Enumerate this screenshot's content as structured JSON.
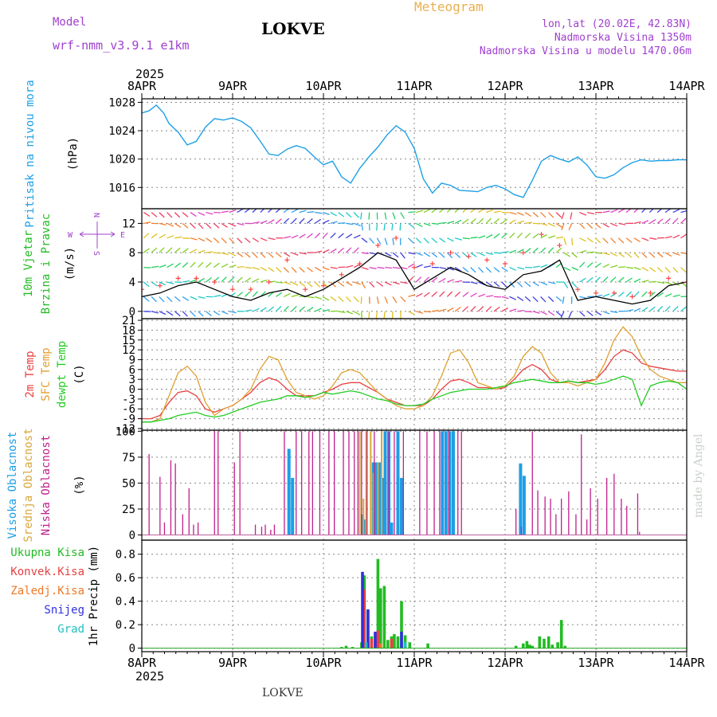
{
  "header": {
    "model_label": "Model",
    "model_name": "wrf-nmm_v3.9.1  e1km",
    "station": "LOKVE",
    "title": "Meteogram",
    "coords": "lon,lat (20.02E, 42.83N)",
    "elevation": "Nadmorska Visina 1350m",
    "model_elevation": "Nadmorska Visina u modelu 1470.06m",
    "footer_station": "LOKVE",
    "watermark": "made by Angel"
  },
  "colors": {
    "pressure": "#1ea0e6",
    "wind_label": "#22bb22",
    "wind_obs_black": "#000000",
    "gust": "#ff4444",
    "temp2m": "#e84040",
    "sfc": "#e0a030",
    "dewpt": "#22cc22",
    "cloud_high": "#1e9ee6",
    "cloud_mid": "#d8a83c",
    "cloud_low": "#c0208c",
    "precip_total": "#22bb22",
    "precip_conv": "#e84040",
    "precip_frz": "#ee7722",
    "precip_snow": "#3030e0",
    "precip_hail": "#20c0c0",
    "purple": "#a040d0",
    "gold": "#e8b050"
  },
  "chart_data": [
    {
      "type": "line",
      "panel": "pressure",
      "ylabel_1": "Pritisak na nivou mora",
      "ylabel_2": "(hPa)",
      "ylim": [
        1013,
        1028.5
      ],
      "yticks": [
        1016,
        1020,
        1024,
        1028
      ],
      "x_days": [
        0,
        0.08,
        0.16,
        0.24,
        0.3,
        0.4,
        0.5,
        0.6,
        0.7,
        0.8,
        0.9,
        1.0,
        1.1,
        1.2,
        1.3,
        1.4,
        1.5,
        1.6,
        1.7,
        1.8,
        1.9,
        2.0,
        2.1,
        2.2,
        2.3,
        2.4,
        2.5,
        2.6,
        2.7,
        2.8,
        2.9,
        3.0,
        3.1,
        3.2,
        3.3,
        3.4,
        3.5,
        3.6,
        3.7,
        3.8,
        3.9,
        4.0,
        4.1,
        4.2,
        4.3,
        4.4,
        4.5,
        4.6,
        4.7,
        4.8,
        4.9,
        5.0,
        5.1,
        5.2,
        5.3,
        5.4,
        5.5,
        5.6,
        5.7,
        5.8,
        5.9,
        6.0
      ],
      "values": [
        1026.5,
        1026.8,
        1027.6,
        1026.5,
        1025,
        1023.8,
        1022,
        1022.5,
        1024.5,
        1025.7,
        1025.5,
        1025.8,
        1025.3,
        1024.4,
        1022.6,
        1020.7,
        1020.5,
        1021.4,
        1021.9,
        1021.5,
        1020.3,
        1019.2,
        1019.7,
        1017.5,
        1016.6,
        1018.7,
        1020.3,
        1021.7,
        1023.4,
        1024.7,
        1023.8,
        1021.5,
        1017.2,
        1015.2,
        1016.6,
        1016.3,
        1015.6,
        1015.5,
        1015.4,
        1016,
        1016.3,
        1015.8,
        1015.0,
        1014.6,
        1017,
        1019.7,
        1020.5,
        1020.0,
        1019.6,
        1020.3,
        1019.2,
        1017.5,
        1017.3,
        1017.8,
        1018.8,
        1019.5,
        1019.9,
        1019.7,
        1019.8,
        1019.8,
        1019.9,
        1019.9
      ]
    },
    {
      "type": "line",
      "panel": "wind",
      "ylabel_1": "10m Vjetar",
      "ylabel_2": "Brzina i Pravac",
      "ylabel_3": "(m/s)",
      "ylim": [
        -1,
        14
      ],
      "yticks": [
        0,
        4,
        8,
        12
      ],
      "compass": {
        "n": "N",
        "s": "S",
        "w": "W",
        "e": "E"
      },
      "x_days": [
        0,
        0.2,
        0.4,
        0.6,
        0.8,
        1.0,
        1.2,
        1.4,
        1.6,
        1.8,
        2.0,
        2.2,
        2.4,
        2.6,
        2.8,
        3.0,
        3.2,
        3.4,
        3.6,
        3.8,
        4.0,
        4.2,
        4.4,
        4.6,
        4.8,
        5.0,
        5.2,
        5.4,
        5.6,
        5.8,
        6.0
      ],
      "series": [
        {
          "name": "wind speed",
          "values": [
            2,
            2.5,
            3.5,
            4.0,
            3.0,
            2.0,
            1.5,
            2.5,
            3.0,
            2.0,
            3.0,
            4.5,
            6.0,
            8.0,
            7.0,
            3.0,
            4.5,
            6.0,
            5.0,
            3.5,
            3.0,
            5.0,
            5.5,
            7.0,
            1.5,
            2.0,
            1.5,
            1.0,
            1.5,
            3.5,
            4.0
          ]
        },
        {
          "name": "gust",
          "values": [
            3,
            3.5,
            4.5,
            4.5,
            4.0,
            3.0,
            3.0,
            4.0,
            7.0,
            3.0,
            3.5,
            5.0,
            6.5,
            9.0,
            10.0,
            6.0,
            6.5,
            8.0,
            7.5,
            7.0,
            6.5,
            8.0,
            10.5,
            9.0,
            3.0,
            2.5,
            2.5,
            2.0,
            2.5,
            4.5,
            4.0
          ]
        }
      ]
    },
    {
      "type": "line",
      "panel": "temperature",
      "ylabel_1": "2m Temp",
      "ylabel_2": "SFC Temp",
      "ylabel_3": "dewpt Temp",
      "ylabel_4": "(C)",
      "ylim": [
        -12.5,
        21.5
      ],
      "yticks": [
        -12,
        -9,
        -6,
        -3,
        0,
        3,
        6,
        9,
        12,
        15,
        18,
        21
      ],
      "x_days": [
        0,
        0.1,
        0.2,
        0.3,
        0.4,
        0.5,
        0.6,
        0.7,
        0.8,
        0.9,
        1.0,
        1.1,
        1.2,
        1.3,
        1.4,
        1.5,
        1.6,
        1.7,
        1.8,
        1.9,
        2.0,
        2.1,
        2.2,
        2.3,
        2.4,
        2.5,
        2.6,
        2.7,
        2.8,
        2.9,
        3.0,
        3.1,
        3.2,
        3.3,
        3.4,
        3.5,
        3.6,
        3.7,
        3.8,
        3.9,
        4.0,
        4.1,
        4.2,
        4.3,
        4.4,
        4.5,
        4.6,
        4.7,
        4.8,
        4.9,
        5.0,
        5.1,
        5.2,
        5.3,
        5.4,
        5.5,
        5.6,
        5.7,
        5.8,
        5.9,
        6.0
      ],
      "series": [
        {
          "name": "2m Temp",
          "values": [
            -9,
            -9,
            -8,
            -4,
            -1,
            -0.5,
            -2,
            -6,
            -7,
            -6,
            -5,
            -3,
            -1,
            2,
            3.5,
            2.5,
            0,
            -2,
            -2,
            -2,
            -1,
            0,
            1.5,
            2,
            2,
            0.5,
            -1,
            -3,
            -4,
            -5,
            -5,
            -5,
            -3,
            0,
            2.5,
            3,
            2,
            0.5,
            0.5,
            0,
            0.5,
            3,
            6,
            7.5,
            6,
            3,
            2,
            2.5,
            2,
            2.5,
            3,
            6,
            10,
            12,
            11,
            8,
            7,
            6.5,
            6,
            5.5,
            5.5
          ]
        },
        {
          "name": "SFC Temp",
          "values": [
            -10,
            -10,
            -9,
            -2,
            5,
            7,
            4,
            -4,
            -8,
            -6,
            -5,
            -3,
            0,
            6,
            10,
            9,
            3,
            -1,
            -2,
            -3,
            -2,
            1,
            5,
            6,
            5,
            2,
            -1,
            -3,
            -5,
            -6,
            -6,
            -5,
            -2,
            4,
            11,
            12,
            8,
            2,
            1,
            0,
            1,
            4,
            10,
            13,
            11,
            5,
            2,
            2,
            1,
            2,
            3,
            8,
            15,
            19,
            16,
            10,
            6,
            4,
            3,
            2,
            2
          ]
        },
        {
          "name": "dewpt Temp",
          "values": [
            -10,
            -10,
            -9.5,
            -9,
            -8,
            -7.5,
            -7,
            -8,
            -8.5,
            -8,
            -7,
            -6,
            -5,
            -4,
            -3.5,
            -3,
            -2,
            -2,
            -2.5,
            -2,
            -1,
            -1.5,
            -1,
            -0.5,
            -1,
            -2,
            -3,
            -3.5,
            -4.5,
            -5,
            -5,
            -4.5,
            -3,
            -2,
            -1,
            -0.5,
            0,
            0,
            0,
            0.5,
            1,
            2,
            2.5,
            3,
            2.5,
            2,
            2,
            2.5,
            2,
            2,
            1.5,
            2,
            3,
            4,
            3,
            -5,
            1,
            2,
            2.5,
            2,
            0
          ]
        }
      ]
    },
    {
      "type": "bar",
      "panel": "clouds",
      "ylabel_1": "Visoka Oblacnost",
      "ylabel_2": "Srednja Oblacnost",
      "ylabel_3": "Niska Oblacnost",
      "ylabel_4": "(%)",
      "ylim": [
        -5,
        101
      ],
      "yticks": [
        0,
        25,
        50,
        75,
        100
      ],
      "series": [
        {
          "name": "Visoka Oblacnost",
          "x_days": [
            1.62,
            1.66,
            2.43,
            2.46,
            2.55,
            2.58,
            2.62,
            2.65,
            2.68,
            2.72,
            2.75,
            2.82,
            2.86,
            3.31,
            3.35,
            3.39,
            3.43,
            4.17,
            4.21
          ],
          "values": [
            83,
            55,
            20,
            15,
            70,
            70,
            70,
            55,
            100,
            100,
            12,
            100,
            55,
            100,
            100,
            100,
            100,
            69,
            57
          ]
        },
        {
          "name": "Srednja Oblacnost",
          "x_days": [
            2.4,
            2.44,
            2.47,
            2.52,
            2.55,
            2.6,
            2.64
          ],
          "values": [
            100,
            35,
            100,
            100,
            60,
            70,
            100
          ]
        },
        {
          "name": "Niska Oblacnost",
          "x_days": [
            0.08,
            0.2,
            0.25,
            0.32,
            0.37,
            0.45,
            0.52,
            0.57,
            0.62,
            0.8,
            0.84,
            1.02,
            1.08,
            1.25,
            1.32,
            1.36,
            1.42,
            1.46,
            1.57,
            1.7,
            1.76,
            1.84,
            1.88,
            1.96,
            2.06,
            2.12,
            2.22,
            2.28,
            2.34,
            2.38,
            2.42,
            2.48,
            2.56,
            2.72,
            2.78,
            2.88,
            3.06,
            3.14,
            3.22,
            3.28,
            3.38,
            3.48,
            3.52,
            4.12,
            4.18,
            4.3,
            4.36,
            4.44,
            4.5,
            4.56,
            4.62,
            4.7,
            4.78,
            4.84,
            4.9,
            4.94,
            5.02,
            5.12,
            5.2,
            5.28,
            5.34,
            5.46,
            5.48
          ],
          "values": [
            78,
            56,
            12,
            72,
            69,
            20,
            45,
            10,
            12,
            100,
            100,
            70,
            100,
            10,
            8,
            10,
            5,
            10,
            100,
            100,
            100,
            100,
            100,
            100,
            100,
            100,
            100,
            100,
            100,
            100,
            100,
            100,
            100,
            100,
            100,
            100,
            100,
            100,
            100,
            100,
            100,
            100,
            100,
            25,
            8,
            100,
            43,
            37,
            35,
            20,
            35,
            42,
            20,
            97,
            15,
            45,
            35,
            55,
            59,
            35,
            28,
            40,
            3
          ]
        }
      ]
    },
    {
      "type": "bar",
      "panel": "precip",
      "ylabel": "1hr Precip (mm)",
      "legend": [
        "Ukupna Kisa",
        "Konvek.Kisa",
        "Zaledj.Kisa",
        "Snijeg",
        "Grad"
      ],
      "ylim": [
        -0.03,
        0.92
      ],
      "yticks": [
        0,
        0.2,
        0.4,
        0.6,
        0.8
      ],
      "series": [
        {
          "name": "Ukupna Kisa",
          "x_days": [
            2.2,
            2.25,
            2.32,
            2.42,
            2.45,
            2.49,
            2.53,
            2.57,
            2.6,
            2.63,
            2.67,
            2.71,
            2.75,
            2.78,
            2.82,
            2.86,
            2.9,
            2.95,
            3.15,
            4.12,
            4.2,
            4.24,
            4.27,
            4.3,
            4.38,
            4.43,
            4.48,
            4.52,
            4.58,
            4.62,
            4.66
          ],
          "values": [
            0.01,
            0.02,
            0.01,
            0.05,
            0.62,
            0.32,
            0.1,
            0.12,
            0.76,
            0.51,
            0.53,
            0.07,
            0.1,
            0.12,
            0.1,
            0.4,
            0.11,
            0.05,
            0.04,
            0.02,
            0.04,
            0.06,
            0.03,
            0.02,
            0.1,
            0.08,
            0.1,
            0.03,
            0.05,
            0.24,
            0.02
          ]
        },
        {
          "name": "Konvek.Kisa",
          "x_days": [
            2.45,
            2.53,
            2.6,
            2.75
          ],
          "values": [
            0.5,
            0.08,
            0.15,
            0.08
          ]
        },
        {
          "name": "Zaledj.Kisa",
          "x_days": [
            2.49,
            2.63
          ],
          "values": [
            0.05,
            0.04
          ]
        },
        {
          "name": "Snijeg",
          "x_days": [
            2.43,
            2.49,
            2.57,
            2.86
          ],
          "values": [
            0.65,
            0.33,
            0.14,
            0.14
          ]
        },
        {
          "name": "Grad",
          "x_days": [
            2.47,
            2.9
          ],
          "values": [
            0.05,
            0.05
          ]
        }
      ]
    }
  ],
  "x_axis": {
    "top_year": "2025",
    "bottom_year": "2025",
    "day_labels": [
      "8APR",
      "9APR",
      "10APR",
      "11APR",
      "12APR",
      "13APR",
      "14APR"
    ]
  }
}
